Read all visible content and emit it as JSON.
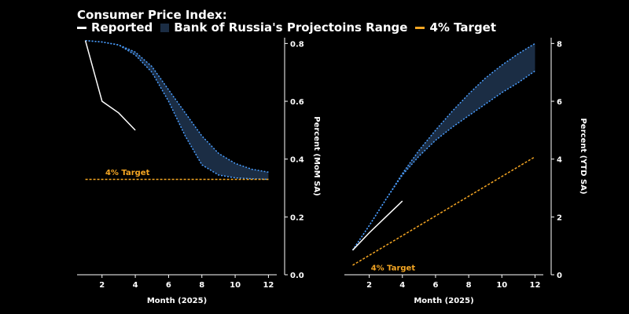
{
  "title": "Consumer Price Index:",
  "legend": [
    {
      "label": "Reported",
      "color": "#ffffff",
      "kind": "line"
    },
    {
      "label": "Bank of Russia's Projectoins Range",
      "color": "#1b2d44",
      "kind": "box"
    },
    {
      "label": "4% Target",
      "color": "#f5a623",
      "kind": "line"
    }
  ],
  "colors": {
    "reported": "#ffffff",
    "band_fill": "#1b2d44",
    "band_edge": "#4a9eff",
    "target": "#f5a623",
    "axis": "#ffffff"
  },
  "chart_data": [
    {
      "type": "line",
      "title": "",
      "xlabel": "Month (2025)",
      "ylabel": "Percent (MoM SA)",
      "xlim": [
        0.5,
        12.5
      ],
      "ylim": [
        0,
        0.82
      ],
      "xticks": [
        2,
        4,
        6,
        8,
        10,
        12
      ],
      "yticks": [
        0.0,
        0.2,
        0.4,
        0.6,
        0.8
      ],
      "ytick_decimals": 1,
      "y_axis_side": "right",
      "series": [
        {
          "name": "Reported",
          "x": [
            1,
            2,
            3,
            4
          ],
          "y": [
            0.81,
            0.6,
            0.56,
            0.5
          ]
        }
      ],
      "band": {
        "name": "Bank of Russia's Projectoins Range",
        "x": [
          1,
          2,
          3,
          4,
          5,
          6,
          7,
          8,
          9,
          10,
          11,
          12
        ],
        "upper": [
          0.81,
          0.805,
          0.795,
          0.77,
          0.72,
          0.64,
          0.56,
          0.48,
          0.42,
          0.385,
          0.365,
          0.355
        ],
        "lower": [
          0.81,
          0.805,
          0.795,
          0.76,
          0.7,
          0.6,
          0.48,
          0.38,
          0.345,
          0.335,
          0.332,
          0.33
        ]
      },
      "target": {
        "label": "4% Target",
        "x": [
          1,
          12
        ],
        "y": [
          0.33,
          0.33
        ],
        "label_at": [
          2.2,
          0.345
        ]
      }
    },
    {
      "type": "line",
      "title": "",
      "xlabel": "Month (2025)",
      "ylabel": "Percent (YTD SA)",
      "xlim": [
        0.5,
        12.5
      ],
      "ylim": [
        0,
        8.2
      ],
      "xticks": [
        2,
        4,
        6,
        8,
        10,
        12
      ],
      "yticks": [
        0,
        2,
        4,
        6,
        8
      ],
      "ytick_decimals": 0,
      "y_axis_side": "right",
      "series": [
        {
          "name": "Reported",
          "x": [
            1,
            2,
            3,
            4
          ],
          "y": [
            0.85,
            1.45,
            2.0,
            2.55
          ]
        }
      ],
      "band": {
        "name": "Bank of Russia's Projectoins Range",
        "x": [
          1,
          2,
          3,
          4,
          5,
          6,
          7,
          8,
          9,
          10,
          11,
          12
        ],
        "upper": [
          0.85,
          1.7,
          2.6,
          3.5,
          4.3,
          5.0,
          5.65,
          6.25,
          6.8,
          7.25,
          7.65,
          8.0
        ],
        "lower": [
          0.85,
          1.7,
          2.6,
          3.45,
          4.1,
          4.65,
          5.1,
          5.5,
          5.9,
          6.3,
          6.65,
          7.05
        ]
      },
      "target": {
        "label": "4% Target",
        "x": [
          1,
          12
        ],
        "y": [
          0.33,
          4.08
        ],
        "label_at": [
          2.1,
          0.15
        ]
      }
    }
  ]
}
